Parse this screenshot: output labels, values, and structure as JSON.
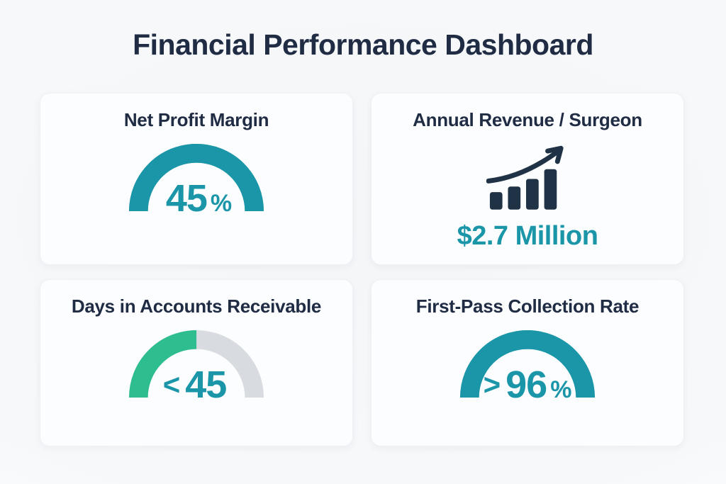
{
  "page": {
    "title": "Financial Performance Dashboard"
  },
  "theme": {
    "background": "#f5f7f9",
    "card_background": "#fbfdfe",
    "heading_color": "#202c44",
    "accent_teal": "#1b96a9",
    "accent_green": "#2dbd8f",
    "track_gray": "#d8dce0",
    "icon_navy": "#203245"
  },
  "metrics": [
    {
      "title": "Net Profit Margin",
      "prefix": "",
      "value": "45",
      "suffix": "%",
      "gauge": {
        "fill_percent": 100,
        "fill_color": "#1b96a9",
        "track_color": "#1b96a9"
      }
    },
    {
      "title": "Annual Revenue / Surgeon",
      "icon": "growth-chart-icon",
      "value_text": "$2.7 Million"
    },
    {
      "title": "Days in Accounts Receivable",
      "prefix": "<",
      "value": "45",
      "suffix": "",
      "gauge": {
        "fill_percent": 50,
        "fill_color": "#2dbd8f",
        "track_color": "#d8dce0"
      }
    },
    {
      "title": "First-Pass Collection Rate",
      "prefix": ">",
      "value": "96",
      "suffix": "%",
      "gauge": {
        "fill_percent": 100,
        "fill_color": "#1b96a9",
        "track_color": "#1b96a9"
      }
    }
  ],
  "chart_data": [
    {
      "type": "gauge",
      "title": "Net Profit Margin",
      "value": 45,
      "unit": "%",
      "display": "45%",
      "fill_percent": 100,
      "color": "#1b96a9"
    },
    {
      "type": "kpi",
      "title": "Annual Revenue / Surgeon",
      "value": 2.7,
      "unit": "Million $",
      "display": "$2.7 Million",
      "icon": "growth-chart-icon"
    },
    {
      "type": "gauge",
      "title": "Days in Accounts Receivable",
      "qualifier": "<",
      "value": 45,
      "display": "< 45",
      "fill_percent": 50,
      "color": "#2dbd8f",
      "track_color": "#d8dce0"
    },
    {
      "type": "gauge",
      "title": "First-Pass Collection Rate",
      "qualifier": ">",
      "value": 96,
      "unit": "%",
      "display": ">96%",
      "fill_percent": 100,
      "color": "#1b96a9"
    }
  ]
}
